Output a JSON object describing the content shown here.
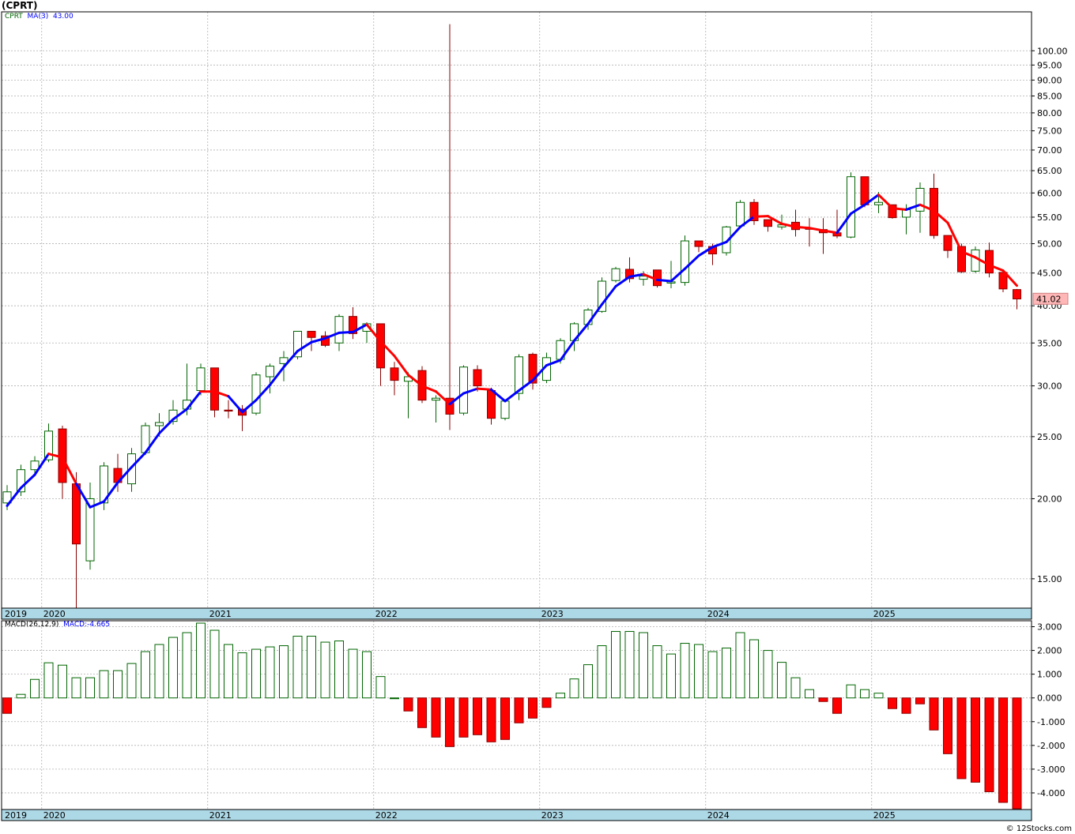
{
  "chart": {
    "title": "(CPRT)",
    "symbol": "CPRT",
    "ma_label": "MA(3)",
    "ma_value": "43.00",
    "last_price": "41.02",
    "macd_label": "MACD(26,12,9)",
    "macd_value": "MACD:-4.665",
    "watermark": "© 12Stocks.com",
    "colors": {
      "up_candle": "#006400",
      "down_candle": "#ff0000",
      "ma_up": "#0000ff",
      "ma_down": "#ff0000",
      "axis_band": "#add8e6",
      "grid": "#b0b0b0"
    }
  },
  "chart_data": [
    {
      "type": "candlestick",
      "title": "(CPRT)",
      "scale": "log",
      "ylim": [
        13.5,
        115
      ],
      "yticks": [
        "15.00",
        "20.00",
        "25.00",
        "30.00",
        "35.00",
        "40.00",
        "45.00",
        "50.00",
        "55.00",
        "60.00",
        "65.00",
        "70.00",
        "75.00",
        "80.00",
        "85.00",
        "90.00",
        "95.00",
        "100.00"
      ],
      "ytick_values": [
        15,
        20,
        25,
        30,
        35,
        40,
        45,
        50,
        55,
        60,
        65,
        70,
        75,
        80,
        85,
        90,
        95,
        100
      ],
      "x_start": "2019-10",
      "year_labels": [
        "2019",
        "2020",
        "2021",
        "2022",
        "2023",
        "2024",
        "2025"
      ],
      "candles": [
        {
          "o": 19.7,
          "h": 21.0,
          "l": 19.2,
          "c": 20.5
        },
        {
          "o": 20.5,
          "h": 22.6,
          "l": 20.2,
          "c": 22.2
        },
        {
          "o": 22.2,
          "h": 23.3,
          "l": 21.7,
          "c": 22.9
        },
        {
          "o": 23.0,
          "h": 26.2,
          "l": 22.8,
          "c": 25.5
        },
        {
          "o": 25.7,
          "h": 26.0,
          "l": 20.0,
          "c": 21.2
        },
        {
          "o": 21.1,
          "h": 22.0,
          "l": 13.5,
          "c": 17.0
        },
        {
          "o": 16.0,
          "h": 21.2,
          "l": 15.5,
          "c": 20.0
        },
        {
          "o": 19.7,
          "h": 22.8,
          "l": 19.2,
          "c": 22.5
        },
        {
          "o": 22.3,
          "h": 23.5,
          "l": 20.5,
          "c": 21.2
        },
        {
          "o": 21.1,
          "h": 24.0,
          "l": 20.5,
          "c": 23.5
        },
        {
          "o": 23.6,
          "h": 26.3,
          "l": 23.4,
          "c": 26.0
        },
        {
          "o": 26.0,
          "h": 27.2,
          "l": 25.0,
          "c": 26.3
        },
        {
          "o": 26.4,
          "h": 28.5,
          "l": 26.1,
          "c": 27.5
        },
        {
          "o": 27.6,
          "h": 32.5,
          "l": 27.0,
          "c": 28.5
        },
        {
          "o": 29.5,
          "h": 32.5,
          "l": 29.0,
          "c": 32.0
        },
        {
          "o": 32.0,
          "h": 32.0,
          "l": 26.8,
          "c": 27.5
        },
        {
          "o": 27.5,
          "h": 28.5,
          "l": 26.7,
          "c": 27.4
        },
        {
          "o": 27.6,
          "h": 28.0,
          "l": 25.5,
          "c": 27.0
        },
        {
          "o": 27.2,
          "h": 31.5,
          "l": 27.0,
          "c": 31.2
        },
        {
          "o": 31.0,
          "h": 32.5,
          "l": 29.2,
          "c": 32.2
        },
        {
          "o": 32.5,
          "h": 34.0,
          "l": 30.5,
          "c": 33.2
        },
        {
          "o": 33.3,
          "h": 36.5,
          "l": 33.0,
          "c": 36.5
        },
        {
          "o": 36.5,
          "h": 36.5,
          "l": 34.0,
          "c": 35.7
        },
        {
          "o": 35.9,
          "h": 36.5,
          "l": 34.5,
          "c": 34.7
        },
        {
          "o": 35.0,
          "h": 38.8,
          "l": 34.0,
          "c": 38.5
        },
        {
          "o": 38.5,
          "h": 39.8,
          "l": 35.5,
          "c": 36.2
        },
        {
          "o": 36.5,
          "h": 37.7,
          "l": 35.0,
          "c": 37.5
        },
        {
          "o": 37.5,
          "h": 37.5,
          "l": 30.0,
          "c": 32.0
        },
        {
          "o": 32.0,
          "h": 32.7,
          "l": 29.0,
          "c": 30.6
        },
        {
          "o": 30.5,
          "h": 31.5,
          "l": 26.7,
          "c": 31.0
        },
        {
          "o": 31.7,
          "h": 32.2,
          "l": 28.2,
          "c": 28.5
        },
        {
          "o": 28.5,
          "h": 29.0,
          "l": 26.3,
          "c": 28.7
        },
        {
          "o": 28.7,
          "h": 110.0,
          "l": 25.6,
          "c": 27.1
        },
        {
          "o": 27.2,
          "h": 32.3,
          "l": 27.0,
          "c": 32.1
        },
        {
          "o": 31.8,
          "h": 32.3,
          "l": 29.4,
          "c": 30.0
        },
        {
          "o": 29.5,
          "h": 29.8,
          "l": 26.1,
          "c": 26.7
        },
        {
          "o": 26.7,
          "h": 28.5,
          "l": 26.5,
          "c": 28.4
        },
        {
          "o": 29.2,
          "h": 33.6,
          "l": 28.5,
          "c": 33.3
        },
        {
          "o": 33.6,
          "h": 33.8,
          "l": 29.6,
          "c": 30.3
        },
        {
          "o": 30.6,
          "h": 33.8,
          "l": 30.3,
          "c": 33.2
        },
        {
          "o": 33.0,
          "h": 35.6,
          "l": 32.5,
          "c": 35.3
        },
        {
          "o": 35.3,
          "h": 37.7,
          "l": 34.0,
          "c": 37.5
        },
        {
          "o": 37.4,
          "h": 39.7,
          "l": 36.7,
          "c": 39.4
        },
        {
          "o": 39.2,
          "h": 44.3,
          "l": 39.0,
          "c": 43.7
        },
        {
          "o": 43.8,
          "h": 46.0,
          "l": 43.5,
          "c": 45.7
        },
        {
          "o": 45.6,
          "h": 47.6,
          "l": 43.5,
          "c": 44.1
        },
        {
          "o": 44.0,
          "h": 45.3,
          "l": 43.0,
          "c": 44.5
        },
        {
          "o": 45.5,
          "h": 45.5,
          "l": 42.7,
          "c": 43.0
        },
        {
          "o": 43.4,
          "h": 47.0,
          "l": 42.6,
          "c": 43.6
        },
        {
          "o": 43.5,
          "h": 51.5,
          "l": 43.0,
          "c": 50.5
        },
        {
          "o": 50.5,
          "h": 50.5,
          "l": 48.5,
          "c": 49.5
        },
        {
          "o": 49.5,
          "h": 50.0,
          "l": 46.3,
          "c": 48.2
        },
        {
          "o": 48.4,
          "h": 53.3,
          "l": 47.9,
          "c": 53.1
        },
        {
          "o": 53.3,
          "h": 58.5,
          "l": 53.2,
          "c": 58.0
        },
        {
          "o": 58.0,
          "h": 58.7,
          "l": 53.5,
          "c": 54.3
        },
        {
          "o": 54.5,
          "h": 54.5,
          "l": 52.2,
          "c": 53.2
        },
        {
          "o": 53.1,
          "h": 55.5,
          "l": 52.6,
          "c": 53.5
        },
        {
          "o": 54.0,
          "h": 56.5,
          "l": 51.3,
          "c": 52.6
        },
        {
          "o": 52.8,
          "h": 54.8,
          "l": 49.5,
          "c": 52.7
        },
        {
          "o": 52.6,
          "h": 54.8,
          "l": 48.2,
          "c": 52.0
        },
        {
          "o": 52.0,
          "h": 56.5,
          "l": 51.0,
          "c": 51.4
        },
        {
          "o": 51.2,
          "h": 64.6,
          "l": 51.0,
          "c": 63.6
        },
        {
          "o": 63.6,
          "h": 63.6,
          "l": 57.0,
          "c": 57.5
        },
        {
          "o": 57.5,
          "h": 60.2,
          "l": 55.8,
          "c": 58.0
        },
        {
          "o": 57.5,
          "h": 57.5,
          "l": 54.7,
          "c": 54.9
        },
        {
          "o": 55.0,
          "h": 57.6,
          "l": 51.7,
          "c": 56.5
        },
        {
          "o": 56.2,
          "h": 62.3,
          "l": 52.0,
          "c": 61.0
        },
        {
          "o": 61.0,
          "h": 64.3,
          "l": 50.9,
          "c": 51.5
        },
        {
          "o": 51.5,
          "h": 51.5,
          "l": 47.5,
          "c": 48.8
        },
        {
          "o": 49.5,
          "h": 50.0,
          "l": 45.0,
          "c": 45.2
        },
        {
          "o": 45.3,
          "h": 49.5,
          "l": 45.0,
          "c": 48.9
        },
        {
          "o": 48.8,
          "h": 50.2,
          "l": 44.3,
          "c": 45.0
        },
        {
          "o": 45.1,
          "h": 45.5,
          "l": 42.0,
          "c": 42.5
        },
        {
          "o": 42.4,
          "h": 42.5,
          "l": 39.5,
          "c": 41.0
        }
      ],
      "ma3": [
        19.5,
        20.8,
        21.8,
        23.5,
        23.2,
        21.1,
        19.4,
        19.8,
        21.2,
        22.4,
        23.6,
        25.3,
        26.6,
        27.6,
        29.4,
        29.4,
        28.9,
        27.3,
        28.5,
        30.1,
        32.1,
        34.0,
        35.1,
        35.6,
        36.3,
        36.4,
        37.4,
        35.2,
        33.4,
        31.2,
        30.0,
        29.4,
        28.1,
        29.2,
        29.7,
        29.6,
        28.4,
        29.5,
        30.6,
        32.3,
        32.9,
        35.3,
        37.5,
        40.2,
        42.9,
        44.4,
        44.8,
        43.9,
        43.7,
        45.7,
        47.9,
        49.4,
        50.3,
        53.1,
        55.1,
        55.2,
        53.7,
        53.1,
        52.9,
        52.4,
        52.0,
        55.7,
        57.5,
        59.6,
        56.8,
        56.5,
        57.5,
        56.3,
        53.9,
        48.6,
        47.6,
        46.3,
        45.4,
        43.0
      ],
      "ma3_color": [
        "up",
        "up",
        "up",
        "up",
        "down",
        "down",
        "up",
        "up",
        "up",
        "up",
        "up",
        "up",
        "up",
        "up",
        "up",
        "down",
        "down",
        "up",
        "up",
        "up",
        "up",
        "up",
        "up",
        "up",
        "up",
        "up",
        "up",
        "down",
        "down",
        "down",
        "down",
        "down",
        "down",
        "up",
        "up",
        "down",
        "up",
        "up",
        "up",
        "up",
        "up",
        "up",
        "up",
        "up",
        "up",
        "up",
        "up",
        "down",
        "up",
        "up",
        "up",
        "up",
        "up",
        "up",
        "up",
        "down",
        "down",
        "down",
        "down",
        "down",
        "down",
        "up",
        "up",
        "up",
        "down",
        "down",
        "up",
        "down",
        "down",
        "down",
        "down",
        "down",
        "down",
        "down"
      ]
    },
    {
      "type": "bar",
      "title": "MACD(26,12,9)",
      "ylim": [
        -4.7,
        3.25
      ],
      "yticks": [
        "3.000",
        "2.000",
        "1.000",
        "0.000",
        "-1.000",
        "-2.000",
        "-3.000",
        "-4.000"
      ],
      "ytick_values": [
        3,
        2,
        1,
        0,
        -1,
        -2,
        -3,
        -4
      ],
      "values": [
        -0.65,
        0.15,
        0.78,
        1.48,
        1.38,
        0.85,
        0.85,
        1.15,
        1.15,
        1.45,
        1.95,
        2.25,
        2.55,
        2.75,
        3.15,
        2.85,
        2.25,
        1.9,
        2.05,
        2.15,
        2.2,
        2.6,
        2.6,
        2.35,
        2.4,
        2.05,
        1.95,
        0.9,
        0.0,
        -0.55,
        -1.25,
        -1.65,
        -2.05,
        -1.65,
        -1.55,
        -1.85,
        -1.75,
        -1.05,
        -0.85,
        -0.4,
        0.2,
        0.8,
        1.4,
        2.2,
        2.8,
        2.8,
        2.75,
        2.2,
        1.85,
        2.3,
        2.25,
        1.95,
        2.1,
        2.75,
        2.45,
        2.0,
        1.5,
        0.85,
        0.35,
        -0.15,
        -0.65,
        0.55,
        0.35,
        0.2,
        -0.45,
        -0.65,
        -0.25,
        -1.35,
        -2.35,
        -3.4,
        -3.55,
        -3.95,
        -4.4,
        -4.665
      ]
    }
  ]
}
